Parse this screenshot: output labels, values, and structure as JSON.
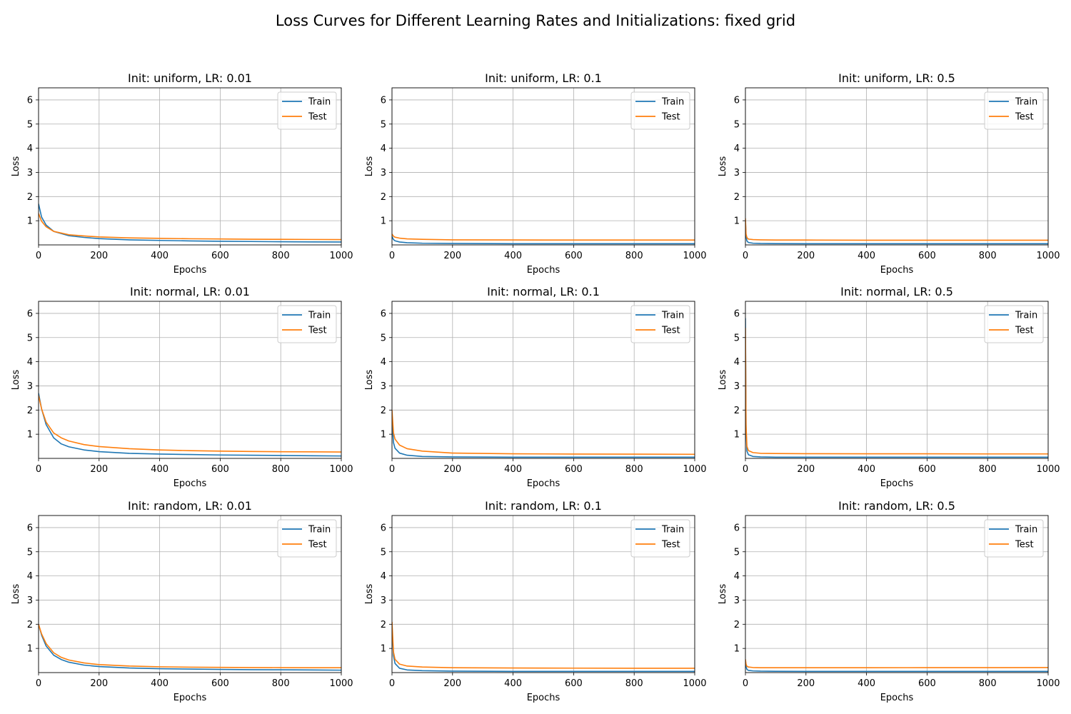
{
  "chart_data": {
    "type": "line",
    "title": "Loss Curves for Different Learning Rates and Initializations: fixed grid",
    "layout": {
      "rows": 3,
      "cols": 3
    },
    "colors": {
      "Train": "#1f77b4",
      "Test": "#ff7f0e",
      "grid": "#b0b0b0"
    },
    "legend_position": "top-right",
    "grid": true,
    "panels": [
      {
        "title": "Init: uniform, LR: 0.01",
        "xlabel": "Epochs",
        "ylabel": "Loss",
        "xlim": [
          0,
          1000
        ],
        "ylim": [
          0,
          6.5
        ],
        "xticks": [
          0,
          200,
          400,
          600,
          800,
          1000
        ],
        "yticks": [
          1,
          2,
          3,
          4,
          5,
          6
        ],
        "series": [
          {
            "name": "Train",
            "x": [
              0,
              10,
              25,
              50,
              100,
              150,
              200,
              300,
              400,
              500,
              600,
              700,
              800,
              900,
              1000
            ],
            "y": [
              1.7,
              1.15,
              0.82,
              0.56,
              0.38,
              0.31,
              0.26,
              0.21,
              0.185,
              0.165,
              0.15,
              0.14,
              0.13,
              0.125,
              0.12
            ]
          },
          {
            "name": "Test",
            "x": [
              0,
              10,
              25,
              50,
              100,
              150,
              200,
              300,
              400,
              500,
              600,
              700,
              800,
              900,
              1000
            ],
            "y": [
              1.3,
              0.98,
              0.75,
              0.56,
              0.42,
              0.37,
              0.33,
              0.29,
              0.27,
              0.255,
              0.245,
              0.235,
              0.23,
              0.225,
              0.22
            ]
          }
        ]
      },
      {
        "title": "Init: uniform, LR: 0.1",
        "xlabel": "Epochs",
        "ylabel": "Loss",
        "xlim": [
          0,
          1000
        ],
        "ylim": [
          0,
          6.5
        ],
        "xticks": [
          0,
          200,
          400,
          600,
          800,
          1000
        ],
        "yticks": [
          1,
          2,
          3,
          4,
          5,
          6
        ],
        "series": [
          {
            "name": "Train",
            "x": [
              0,
              5,
              10,
              25,
              50,
              100,
              200,
              400,
              600,
              800,
              1000
            ],
            "y": [
              0.35,
              0.22,
              0.17,
              0.12,
              0.09,
              0.07,
              0.06,
              0.05,
              0.05,
              0.05,
              0.05
            ]
          },
          {
            "name": "Test",
            "x": [
              0,
              5,
              10,
              25,
              50,
              100,
              200,
              400,
              600,
              800,
              1000
            ],
            "y": [
              0.45,
              0.36,
              0.32,
              0.28,
              0.25,
              0.23,
              0.21,
              0.205,
              0.2,
              0.2,
              0.2
            ]
          }
        ]
      },
      {
        "title": "Init: uniform, LR: 0.5",
        "xlabel": "Epochs",
        "ylabel": "Loss",
        "xlim": [
          0,
          1000
        ],
        "ylim": [
          0,
          6.5
        ],
        "xticks": [
          0,
          200,
          400,
          600,
          800,
          1000
        ],
        "yticks": [
          1,
          2,
          3,
          4,
          5,
          6
        ],
        "series": [
          {
            "name": "Train",
            "x": [
              0,
              2,
              5,
              10,
              25,
              50,
              100,
              200,
              400,
              600,
              800,
              1000
            ],
            "y": [
              1.0,
              0.35,
              0.16,
              0.1,
              0.07,
              0.06,
              0.055,
              0.05,
              0.05,
              0.05,
              0.05,
              0.05
            ]
          },
          {
            "name": "Test",
            "x": [
              0,
              2,
              5,
              10,
              25,
              50,
              100,
              200,
              400,
              600,
              800,
              1000
            ],
            "y": [
              1.1,
              0.45,
              0.3,
              0.24,
              0.22,
              0.21,
              0.2,
              0.2,
              0.195,
              0.195,
              0.195,
              0.195
            ]
          }
        ]
      },
      {
        "title": "Init: normal, LR: 0.01",
        "xlabel": "Epochs",
        "ylabel": "Loss",
        "xlim": [
          0,
          1000
        ],
        "ylim": [
          0,
          6.5
        ],
        "xticks": [
          0,
          200,
          400,
          600,
          800,
          1000
        ],
        "yticks": [
          1,
          2,
          3,
          4,
          5,
          6
        ],
        "series": [
          {
            "name": "Train",
            "x": [
              0,
              10,
              25,
              50,
              75,
              100,
              150,
              200,
              300,
              400,
              500,
              600,
              700,
              800,
              900,
              1000
            ],
            "y": [
              2.7,
              2.05,
              1.4,
              0.85,
              0.6,
              0.48,
              0.35,
              0.28,
              0.21,
              0.18,
              0.16,
              0.14,
              0.13,
              0.12,
              0.11,
              0.1
            ]
          },
          {
            "name": "Test",
            "x": [
              0,
              10,
              25,
              50,
              75,
              100,
              150,
              200,
              300,
              400,
              500,
              600,
              700,
              800,
              900,
              1000
            ],
            "y": [
              2.6,
              2.05,
              1.5,
              1.05,
              0.85,
              0.72,
              0.57,
              0.49,
              0.4,
              0.35,
              0.32,
              0.3,
              0.285,
              0.275,
              0.27,
              0.265
            ]
          }
        ]
      },
      {
        "title": "Init: normal, LR: 0.1",
        "xlabel": "Epochs",
        "ylabel": "Loss",
        "xlim": [
          0,
          1000
        ],
        "ylim": [
          0,
          6.5
        ],
        "xticks": [
          0,
          200,
          400,
          600,
          800,
          1000
        ],
        "yticks": [
          1,
          2,
          3,
          4,
          5,
          6
        ],
        "series": [
          {
            "name": "Train",
            "x": [
              0,
              5,
              10,
              25,
              50,
              100,
              200,
              400,
              600,
              800,
              1000
            ],
            "y": [
              1.6,
              0.65,
              0.42,
              0.22,
              0.13,
              0.08,
              0.06,
              0.05,
              0.05,
              0.05,
              0.05
            ]
          },
          {
            "name": "Test",
            "x": [
              0,
              5,
              10,
              25,
              50,
              100,
              200,
              400,
              600,
              800,
              1000
            ],
            "y": [
              2.0,
              1.05,
              0.8,
              0.55,
              0.4,
              0.3,
              0.22,
              0.19,
              0.18,
              0.175,
              0.17
            ]
          }
        ]
      },
      {
        "title": "Init: normal, LR: 0.5",
        "xlabel": "Epochs",
        "ylabel": "Loss",
        "xlim": [
          0,
          1000
        ],
        "ylim": [
          0,
          6.5
        ],
        "xticks": [
          0,
          200,
          400,
          600,
          800,
          1000
        ],
        "yticks": [
          1,
          2,
          3,
          4,
          5,
          6
        ],
        "series": [
          {
            "name": "Train",
            "x": [
              0,
              2,
              5,
              10,
              25,
              50,
              100,
              200,
              400,
              600,
              800,
              1000
            ],
            "y": [
              5.8,
              1.2,
              0.3,
              0.15,
              0.08,
              0.06,
              0.05,
              0.05,
              0.05,
              0.05,
              0.05,
              0.05
            ]
          },
          {
            "name": "Test",
            "x": [
              0,
              2,
              5,
              10,
              25,
              50,
              100,
              200,
              400,
              600,
              800,
              1000
            ],
            "y": [
              5.4,
              1.4,
              0.5,
              0.32,
              0.24,
              0.21,
              0.2,
              0.195,
              0.19,
              0.19,
              0.185,
              0.185
            ]
          }
        ]
      },
      {
        "title": "Init: random, LR: 0.01",
        "xlabel": "Epochs",
        "ylabel": "Loss",
        "xlim": [
          0,
          1000
        ],
        "ylim": [
          0,
          6.5
        ],
        "xticks": [
          0,
          200,
          400,
          600,
          800,
          1000
        ],
        "yticks": [
          1,
          2,
          3,
          4,
          5,
          6
        ],
        "series": [
          {
            "name": "Train",
            "x": [
              0,
              10,
              25,
              50,
              75,
              100,
              150,
              200,
              300,
              400,
              500,
              600,
              700,
              800,
              900,
              1000
            ],
            "y": [
              2.0,
              1.55,
              1.1,
              0.72,
              0.54,
              0.43,
              0.31,
              0.25,
              0.19,
              0.16,
              0.145,
              0.13,
              0.12,
              0.115,
              0.11,
              0.1
            ]
          },
          {
            "name": "Test",
            "x": [
              0,
              10,
              25,
              50,
              75,
              100,
              150,
              200,
              300,
              400,
              500,
              600,
              700,
              800,
              900,
              1000
            ],
            "y": [
              2.0,
              1.6,
              1.2,
              0.82,
              0.63,
              0.52,
              0.4,
              0.33,
              0.27,
              0.24,
              0.225,
              0.215,
              0.21,
              0.205,
              0.2,
              0.2
            ]
          }
        ]
      },
      {
        "title": "Init: random, LR: 0.1",
        "xlabel": "Epochs",
        "ylabel": "Loss",
        "xlim": [
          0,
          1000
        ],
        "ylim": [
          0,
          6.5
        ],
        "xticks": [
          0,
          200,
          400,
          600,
          800,
          1000
        ],
        "yticks": [
          1,
          2,
          3,
          4,
          5,
          6
        ],
        "series": [
          {
            "name": "Train",
            "x": [
              0,
              5,
              10,
              25,
              50,
              100,
              200,
              400,
              600,
              800,
              1000
            ],
            "y": [
              1.9,
              0.7,
              0.38,
              0.18,
              0.11,
              0.08,
              0.06,
              0.05,
              0.05,
              0.05,
              0.05
            ]
          },
          {
            "name": "Test",
            "x": [
              0,
              5,
              10,
              25,
              50,
              100,
              200,
              400,
              600,
              800,
              1000
            ],
            "y": [
              2.1,
              0.85,
              0.55,
              0.35,
              0.27,
              0.23,
              0.2,
              0.19,
              0.185,
              0.18,
              0.18
            ]
          }
        ]
      },
      {
        "title": "Init: random, LR: 0.5",
        "xlabel": "Epochs",
        "ylabel": "Loss",
        "xlim": [
          0,
          1000
        ],
        "ylim": [
          0,
          6.5
        ],
        "xticks": [
          0,
          200,
          400,
          600,
          800,
          1000
        ],
        "yticks": [
          1,
          2,
          3,
          4,
          5,
          6
        ],
        "series": [
          {
            "name": "Train",
            "x": [
              0,
              2,
              5,
              10,
              25,
              50,
              100,
              200,
              400,
              600,
              800,
              1000
            ],
            "y": [
              0.5,
              0.25,
              0.13,
              0.09,
              0.07,
              0.06,
              0.055,
              0.05,
              0.05,
              0.05,
              0.05,
              0.05
            ]
          },
          {
            "name": "Test",
            "x": [
              0,
              2,
              5,
              10,
              25,
              50,
              100,
              200,
              400,
              600,
              800,
              1000
            ],
            "y": [
              0.55,
              0.35,
              0.26,
              0.23,
              0.21,
              0.2,
              0.2,
              0.2,
              0.2,
              0.205,
              0.205,
              0.21
            ]
          }
        ]
      }
    ]
  }
}
